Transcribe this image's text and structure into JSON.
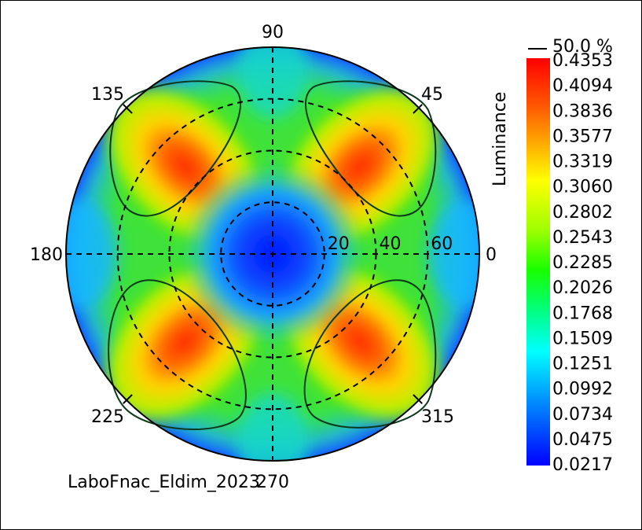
{
  "chart_data": {
    "type": "heatmap",
    "subtype": "polar-conoscopic",
    "colorbar": {
      "title": "Luminance",
      "threshold_label": "50.0 %",
      "ticks": [
        "0.4353",
        "0.4094",
        "0.3836",
        "0.3577",
        "0.3319",
        "0.3060",
        "0.2802",
        "0.2543",
        "0.2285",
        "0.2026",
        "0.1768",
        "0.1509",
        "0.1251",
        "0.0992",
        "0.0734",
        "0.0475",
        "0.0217"
      ],
      "min": 0.0217,
      "max": 0.4353
    },
    "azimuth_labels": [
      "0",
      "45",
      "90",
      "135",
      "180",
      "225",
      "270",
      "315"
    ],
    "radial_labels": [
      "20",
      "40",
      "60"
    ],
    "radial_max": 80,
    "footer": "LaboFnac_Eldim_2023",
    "lobes": [
      {
        "azimuth": 45,
        "peak": 0.39
      },
      {
        "azimuth": 135,
        "peak": 0.38
      },
      {
        "azimuth": 225,
        "peak": 0.41
      },
      {
        "azimuth": 315,
        "peak": 0.4
      }
    ],
    "center_value": 0.02
  }
}
